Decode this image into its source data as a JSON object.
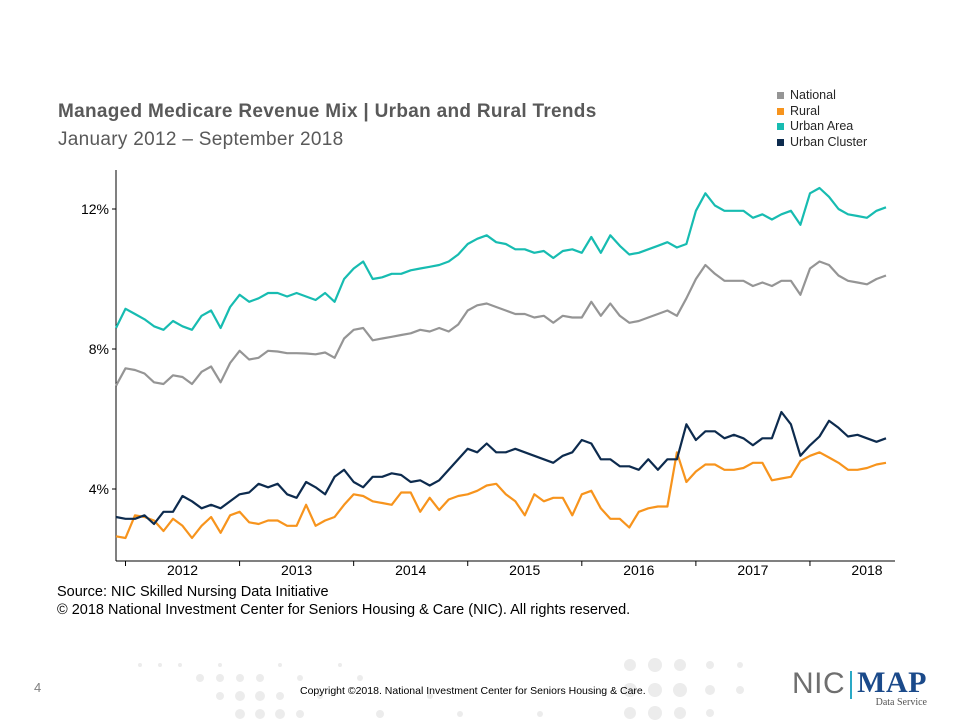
{
  "title": "Managed Medicare  Revenue Mix | Urban and Rural Trends",
  "subtitle": "January  2012 – September  2018",
  "source_line1": "Source: NIC Skilled Nursing Data Initiative",
  "source_line2": "© 2018 National Investment Center for Seniors Housing & Care (NIC). All rights reserved.",
  "page_number": "4",
  "footer_copyright": "Copyright ©2018. National Investment Center for Seniors Housing & Care.",
  "logo": {
    "nic": "NIC",
    "map": "MAP",
    "subtitle": "Data Service",
    "reg": "®"
  },
  "colors": {
    "national": "#959595",
    "rural": "#f7941d",
    "urban_area": "#17bcb1",
    "urban_cluster": "#0d2b4e"
  },
  "chart_data": {
    "type": "line",
    "title": "Managed Medicare  Revenue Mix | Urban and Rural Trends",
    "subtitle": "January  2012 – September  2018",
    "xlabel": "",
    "ylabel": "",
    "x_start": "2012-01",
    "x_end": "2018-09",
    "ylim": [
      2.0,
      13.0
    ],
    "yticks": [
      {
        "label": "4%",
        "value": 4
      },
      {
        "label": "8%",
        "value": 8
      },
      {
        "label": "12%",
        "value": 12
      }
    ],
    "xticks": [
      {
        "label": "2012",
        "month": 4
      },
      {
        "label": "2013",
        "month": 16
      },
      {
        "label": "2014",
        "month": 28
      },
      {
        "label": "2015",
        "month": 40
      },
      {
        "label": "2016",
        "month": 52
      },
      {
        "label": "2017",
        "month": 64
      },
      {
        "label": "2018",
        "month": 76
      }
    ],
    "grid": false,
    "legend_position": "top-right",
    "series": [
      {
        "name": "National",
        "color": "#959595",
        "values": [
          6.95,
          7.45,
          7.4,
          7.3,
          7.05,
          7.0,
          7.25,
          7.2,
          7.0,
          7.35,
          7.5,
          7.05,
          7.6,
          7.95,
          7.7,
          7.75,
          7.95,
          7.93,
          7.88,
          7.88,
          7.87,
          7.85,
          7.9,
          7.75,
          8.3,
          8.55,
          8.6,
          8.25,
          8.3,
          8.35,
          8.4,
          8.45,
          8.55,
          8.5,
          8.6,
          8.5,
          8.7,
          9.1,
          9.25,
          9.3,
          9.2,
          9.1,
          9.0,
          9.0,
          8.9,
          8.95,
          8.75,
          8.95,
          8.9,
          8.9,
          9.35,
          8.95,
          9.3,
          8.95,
          8.75,
          8.8,
          8.9,
          9.0,
          9.1,
          8.95,
          9.45,
          10.0,
          10.4,
          10.15,
          9.95,
          9.95,
          9.95,
          9.8,
          9.9,
          9.8,
          9.95,
          9.95,
          9.55,
          10.3,
          10.5,
          10.4,
          10.1,
          9.95,
          9.9,
          9.85,
          10.0,
          10.1
        ]
      },
      {
        "name": "Rural",
        "color": "#f7941d",
        "values": [
          2.65,
          2.6,
          3.25,
          3.2,
          3.1,
          2.8,
          3.15,
          2.95,
          2.6,
          2.95,
          3.2,
          2.75,
          3.25,
          3.35,
          3.05,
          3.0,
          3.1,
          3.1,
          2.95,
          2.95,
          3.55,
          2.95,
          3.1,
          3.2,
          3.55,
          3.85,
          3.8,
          3.65,
          3.6,
          3.55,
          3.9,
          3.9,
          3.35,
          3.75,
          3.4,
          3.7,
          3.8,
          3.85,
          3.95,
          4.1,
          4.15,
          3.85,
          3.65,
          3.25,
          3.85,
          3.65,
          3.75,
          3.75,
          3.25,
          3.85,
          3.95,
          3.45,
          3.15,
          3.15,
          2.9,
          3.35,
          3.45,
          3.5,
          3.5,
          5.05,
          4.2,
          4.5,
          4.7,
          4.7,
          4.55,
          4.55,
          4.6,
          4.75,
          4.75,
          4.25,
          4.3,
          4.35,
          4.8,
          4.95,
          5.05,
          4.9,
          4.75,
          4.55,
          4.55,
          4.6,
          4.7,
          4.75
        ]
      },
      {
        "name": "Urban Area",
        "color": "#17bcb1",
        "values": [
          8.6,
          9.15,
          9.0,
          8.85,
          8.65,
          8.55,
          8.8,
          8.65,
          8.55,
          8.95,
          9.1,
          8.6,
          9.2,
          9.55,
          9.35,
          9.45,
          9.6,
          9.6,
          9.5,
          9.6,
          9.5,
          9.4,
          9.6,
          9.35,
          10.0,
          10.3,
          10.5,
          10.0,
          10.05,
          10.15,
          10.15,
          10.25,
          10.3,
          10.35,
          10.4,
          10.5,
          10.7,
          11.0,
          11.15,
          11.25,
          11.05,
          11.0,
          10.85,
          10.85,
          10.75,
          10.8,
          10.6,
          10.8,
          10.85,
          10.75,
          11.2,
          10.75,
          11.25,
          10.95,
          10.7,
          10.75,
          10.85,
          10.95,
          11.05,
          10.9,
          11.0,
          11.95,
          12.45,
          12.1,
          11.95,
          11.95,
          11.95,
          11.75,
          11.85,
          11.7,
          11.85,
          11.95,
          11.55,
          12.45,
          12.6,
          12.35,
          12.0,
          11.85,
          11.8,
          11.75,
          11.95,
          12.05
        ]
      },
      {
        "name": "Urban Cluster",
        "color": "#0d2b4e",
        "values": [
          3.2,
          3.15,
          3.15,
          3.25,
          3.0,
          3.35,
          3.35,
          3.8,
          3.65,
          3.45,
          3.55,
          3.45,
          3.65,
          3.85,
          3.9,
          4.15,
          4.05,
          4.15,
          3.85,
          3.75,
          4.2,
          4.05,
          3.85,
          4.35,
          4.55,
          4.2,
          4.05,
          4.35,
          4.35,
          4.45,
          4.4,
          4.2,
          4.25,
          4.1,
          4.25,
          4.55,
          4.85,
          5.15,
          5.05,
          5.3,
          5.05,
          5.05,
          5.15,
          5.05,
          4.95,
          4.85,
          4.75,
          4.95,
          5.05,
          5.4,
          5.3,
          4.85,
          4.85,
          4.65,
          4.65,
          4.55,
          4.85,
          4.55,
          4.85,
          4.85,
          5.85,
          5.4,
          5.65,
          5.65,
          5.45,
          5.55,
          5.45,
          5.25,
          5.45,
          5.45,
          6.2,
          5.85,
          4.95,
          5.25,
          5.5,
          5.95,
          5.75,
          5.5,
          5.55,
          5.45,
          5.35,
          5.45
        ]
      }
    ]
  }
}
